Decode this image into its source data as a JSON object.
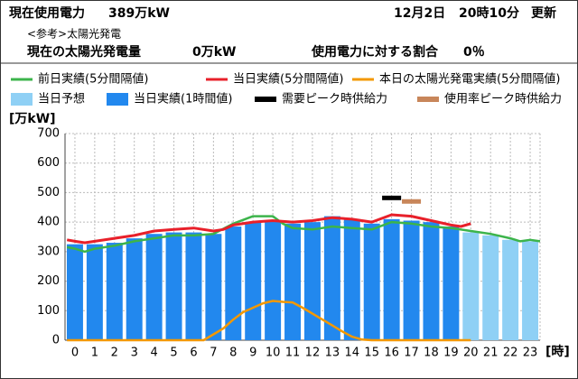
{
  "header": {
    "usage_label": "現在使用電力",
    "usage_value": "389万kW",
    "date": "12月2日",
    "time": "20時10分",
    "updated": "更新",
    "reference": "<参考>太陽光発電",
    "solar_label": "現在の太陽光発電量",
    "solar_value": "0万kW",
    "ratio_label": "使用電力に対する割合",
    "ratio_value": "0％"
  },
  "chart_data": {
    "type": "combo",
    "ylabel": "[万kW]",
    "xlabel": "[時]",
    "categories": [
      "0",
      "1",
      "2",
      "3",
      "4",
      "5",
      "6",
      "7",
      "8",
      "9",
      "10",
      "11",
      "12",
      "13",
      "14",
      "15",
      "16",
      "17",
      "18",
      "19",
      "20",
      "21",
      "22",
      "23"
    ],
    "xlim": [
      -0.5,
      23.5
    ],
    "ylim": [
      0,
      700
    ],
    "yticks": [
      0,
      100,
      200,
      300,
      400,
      500,
      600,
      700
    ],
    "grid": true,
    "series": [
      {
        "name": "前日実績(5分間隔値)",
        "type": "line",
        "color": "#3cb44b",
        "x": [
          -0.4,
          0,
          0.5,
          1,
          2,
          3,
          4,
          5,
          6,
          7,
          8,
          9,
          10,
          10.5,
          11,
          12,
          13,
          14,
          15,
          16,
          17,
          18,
          19,
          20,
          21,
          22,
          22.5,
          23,
          23.5
        ],
        "values": [
          315,
          310,
          300,
          310,
          320,
          335,
          345,
          355,
          355,
          360,
          395,
          420,
          420,
          395,
          380,
          375,
          385,
          380,
          375,
          400,
          395,
          385,
          380,
          370,
          360,
          345,
          335,
          340,
          335
        ]
      },
      {
        "name": "当日実績(5分間隔値)",
        "type": "line",
        "color": "#e8202a",
        "x": [
          -0.4,
          0,
          0.5,
          1,
          2,
          3,
          4,
          5,
          6,
          7,
          7.5,
          8,
          9,
          10,
          11,
          12,
          13,
          14,
          15,
          16,
          17,
          18,
          19,
          19.5,
          20
        ],
        "values": [
          340,
          335,
          330,
          335,
          345,
          355,
          370,
          375,
          380,
          370,
          375,
          390,
          400,
          405,
          400,
          405,
          415,
          410,
          400,
          425,
          420,
          405,
          390,
          385,
          395
        ]
      },
      {
        "name": "本日の太陽光発電実績(5分間隔値)",
        "type": "line",
        "color": "#f39800",
        "x": [
          -0.4,
          6.5,
          7,
          7.5,
          8,
          8.5,
          9,
          9.5,
          10,
          10.5,
          11,
          11.5,
          12,
          12.5,
          13,
          13.5,
          14,
          14.5,
          15,
          20
        ],
        "values": [
          0,
          0,
          20,
          40,
          70,
          95,
          110,
          125,
          133,
          130,
          128,
          110,
          90,
          70,
          50,
          30,
          12,
          2,
          0,
          0
        ]
      },
      {
        "name": "当日予想",
        "type": "bar",
        "color": "#8fd0f5",
        "values": [
          null,
          null,
          null,
          null,
          null,
          null,
          null,
          null,
          null,
          null,
          null,
          null,
          null,
          null,
          null,
          null,
          null,
          null,
          null,
          null,
          365,
          355,
          340,
          335
        ]
      },
      {
        "name": "当日実績(1時間値)",
        "type": "bar",
        "color": "#2288ee",
        "values": [
          325,
          325,
          330,
          345,
          360,
          365,
          365,
          360,
          385,
          400,
          405,
          395,
          400,
          420,
          410,
          395,
          410,
          405,
          400,
          385,
          null,
          null,
          null,
          null
        ]
      },
      {
        "name": "需要ピーク時供給力",
        "type": "marker",
        "color": "#000000",
        "values": [
          null,
          null,
          null,
          null,
          null,
          null,
          null,
          null,
          null,
          null,
          null,
          null,
          null,
          null,
          null,
          null,
          482,
          null,
          null,
          null,
          null,
          null,
          null,
          null
        ]
      },
      {
        "name": "使用率ピーク時供給力",
        "type": "marker",
        "color": "#c8865a",
        "values": [
          null,
          null,
          null,
          null,
          null,
          null,
          null,
          null,
          null,
          null,
          null,
          null,
          null,
          null,
          null,
          null,
          null,
          470,
          null,
          null,
          null,
          null,
          null,
          null
        ]
      }
    ]
  }
}
